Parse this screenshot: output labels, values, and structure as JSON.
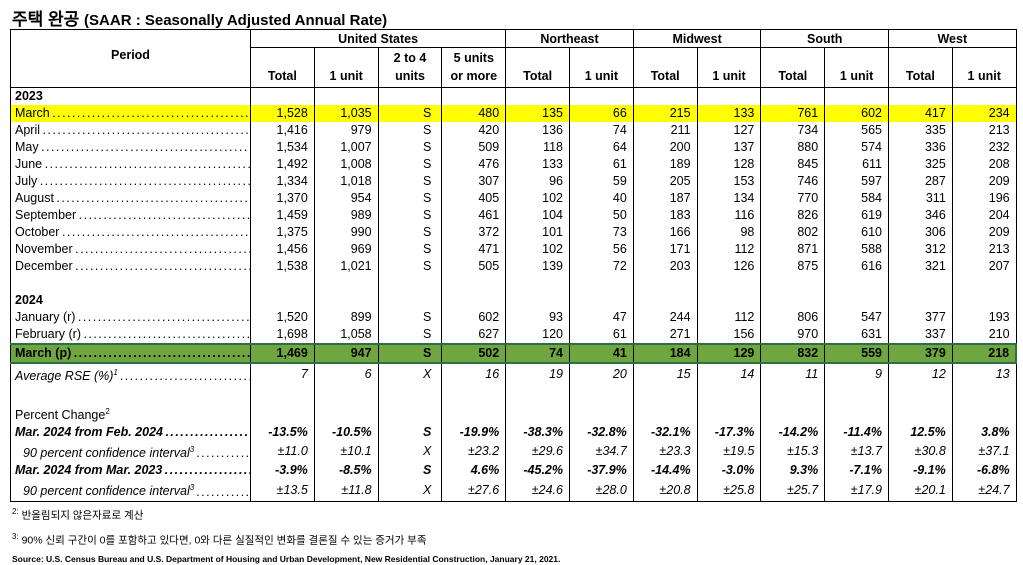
{
  "title": {
    "main": "주택 완공",
    "sub": "(SAAR : Seasonally Adjusted Annual Rate)"
  },
  "header": {
    "period": "Period",
    "regions": [
      "United States",
      "Northeast",
      "Midwest",
      "South",
      "West"
    ],
    "us_cols": [
      "Total",
      "1 unit",
      "2 to 4 units",
      "5 units or more"
    ],
    "region_cols": [
      "Total",
      "1 unit"
    ]
  },
  "colors": {
    "highlight": "#ffff00",
    "current": "#70a640"
  },
  "rows": [
    {
      "type": "year",
      "label": "2023"
    },
    {
      "type": "hl",
      "label": "March",
      "values": [
        "1,528",
        "1,035",
        "S",
        "480",
        "135",
        "66",
        "215",
        "133",
        "761",
        "602",
        "417",
        "234"
      ]
    },
    {
      "label": "April",
      "values": [
        "1,416",
        "979",
        "S",
        "420",
        "136",
        "74",
        "211",
        "127",
        "734",
        "565",
        "335",
        "213"
      ]
    },
    {
      "label": "May",
      "values": [
        "1,534",
        "1,007",
        "S",
        "509",
        "118",
        "64",
        "200",
        "137",
        "880",
        "574",
        "336",
        "232"
      ]
    },
    {
      "label": "June",
      "values": [
        "1,492",
        "1,008",
        "S",
        "476",
        "133",
        "61",
        "189",
        "128",
        "845",
        "611",
        "325",
        "208"
      ]
    },
    {
      "label": "July",
      "values": [
        "1,334",
        "1,018",
        "S",
        "307",
        "96",
        "59",
        "205",
        "153",
        "746",
        "597",
        "287",
        "209"
      ]
    },
    {
      "label": "August",
      "values": [
        "1,370",
        "954",
        "S",
        "405",
        "102",
        "40",
        "187",
        "134",
        "770",
        "584",
        "311",
        "196"
      ]
    },
    {
      "label": "September",
      "values": [
        "1,459",
        "989",
        "S",
        "461",
        "104",
        "50",
        "183",
        "116",
        "826",
        "619",
        "346",
        "204"
      ]
    },
    {
      "label": "October",
      "values": [
        "1,375",
        "990",
        "S",
        "372",
        "101",
        "73",
        "166",
        "98",
        "802",
        "610",
        "306",
        "209"
      ]
    },
    {
      "label": "November",
      "values": [
        "1,456",
        "969",
        "S",
        "471",
        "102",
        "56",
        "171",
        "112",
        "871",
        "588",
        "312",
        "213"
      ]
    },
    {
      "label": "December",
      "values": [
        "1,538",
        "1,021",
        "S",
        "505",
        "139",
        "72",
        "203",
        "126",
        "875",
        "616",
        "321",
        "207"
      ]
    },
    {
      "type": "gap"
    },
    {
      "type": "year",
      "label": "2024"
    },
    {
      "label": "January (r)",
      "values": [
        "1,520",
        "899",
        "S",
        "602",
        "93",
        "47",
        "244",
        "112",
        "806",
        "547",
        "377",
        "193"
      ]
    },
    {
      "label": "February (r)",
      "values": [
        "1,698",
        "1,058",
        "S",
        "627",
        "120",
        "61",
        "271",
        "156",
        "970",
        "631",
        "337",
        "210"
      ]
    },
    {
      "type": "cur",
      "label": "March (p)",
      "values": [
        "1,469",
        "947",
        "S",
        "502",
        "74",
        "41",
        "184",
        "129",
        "832",
        "559",
        "379",
        "218"
      ]
    },
    {
      "type": "it",
      "label": "Average RSE (%)",
      "sup": "1",
      "values": [
        "7",
        "6",
        "X",
        "16",
        "19",
        "20",
        "15",
        "14",
        "11",
        "9",
        "12",
        "13"
      ]
    },
    {
      "type": "gap"
    },
    {
      "type": "pc",
      "label": "Percent Change",
      "sup": "2"
    },
    {
      "type": "bi",
      "label": "Mar. 2024 from Feb. 2024",
      "values": [
        "-13.5%",
        "-10.5%",
        "S",
        "-19.9%",
        "-38.3%",
        "-32.8%",
        "-32.1%",
        "-17.3%",
        "-14.2%",
        "-11.4%",
        "12.5%",
        "3.8%"
      ]
    },
    {
      "type": "ci",
      "label": "90 percent confidence interval",
      "sup": "3",
      "values": [
        "±11.0",
        "±10.1",
        "X",
        "±23.2",
        "±29.6",
        "±34.7",
        "±23.3",
        "±19.5",
        "±15.3",
        "±13.7",
        "±30.8",
        "±37.1"
      ]
    },
    {
      "type": "bi",
      "label": "Mar. 2024 from Mar. 2023",
      "values": [
        "-3.9%",
        "-8.5%",
        "S",
        "4.6%",
        "-45.2%",
        "-37.9%",
        "-14.4%",
        "-3.0%",
        "9.3%",
        "-7.1%",
        "-9.1%",
        "-6.8%"
      ]
    },
    {
      "type": "ci",
      "label": "90 percent confidence interval",
      "sup": "3",
      "values": [
        "±13.5",
        "±11.8",
        "X",
        "±27.6",
        "±24.6",
        "±28.0",
        "±20.8",
        "±25.8",
        "±25.7",
        "±17.9",
        "±20.1",
        "±24.7"
      ]
    }
  ],
  "footnotes": [
    {
      "mark": "2:",
      "text": "반올림되지 않은자료로 계산"
    },
    {
      "mark": "3:",
      "text": "90% 신뢰 구간이 0를 포함하고 있다면, 0와 다른 실질적인 변화를 결론질 수 있는 증거가 부족"
    }
  ],
  "source": "Source: U.S. Census Bureau and U.S. Department of Housing and Urban Development, New Residential Construction, January 21, 2021."
}
